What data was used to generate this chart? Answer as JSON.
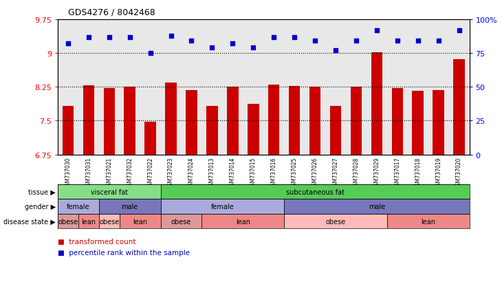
{
  "title": "GDS4276 / 8042468",
  "samples": [
    "GSM737030",
    "GSM737031",
    "GSM737021",
    "GSM737032",
    "GSM737022",
    "GSM737023",
    "GSM737024",
    "GSM737013",
    "GSM737014",
    "GSM737015",
    "GSM737016",
    "GSM737025",
    "GSM737026",
    "GSM737027",
    "GSM737028",
    "GSM737029",
    "GSM737017",
    "GSM737018",
    "GSM737019",
    "GSM737020"
  ],
  "bar_values": [
    7.82,
    8.28,
    8.22,
    8.25,
    7.48,
    8.35,
    8.18,
    7.82,
    8.25,
    7.87,
    8.3,
    8.27,
    8.25,
    7.82,
    8.25,
    9.02,
    8.22,
    8.17,
    8.18,
    8.87
  ],
  "dot_values": [
    82,
    87,
    87,
    87,
    75,
    88,
    84,
    79,
    82,
    79,
    87,
    87,
    84,
    77,
    84,
    92,
    84,
    84,
    84,
    92
  ],
  "ylim": [
    6.75,
    9.75
  ],
  "yticks": [
    6.75,
    7.5,
    8.25,
    9.0,
    9.75
  ],
  "ytick_labels": [
    "6.75",
    "7.5",
    "8.25",
    "9",
    "9.75"
  ],
  "y2lim": [
    0,
    100
  ],
  "y2ticks": [
    0,
    25,
    50,
    75,
    100
  ],
  "y2tick_labels": [
    "0",
    "25",
    "50",
    "75",
    "100%"
  ],
  "grid_lines": [
    7.5,
    8.25,
    9.0
  ],
  "bar_color": "#cc0000",
  "dot_color": "#0000cc",
  "tissue_labels": [
    {
      "text": "visceral fat",
      "start": 0,
      "end": 5,
      "color": "#88dd88"
    },
    {
      "text": "subcutaneous fat",
      "start": 5,
      "end": 20,
      "color": "#55cc55"
    }
  ],
  "gender_labels": [
    {
      "text": "female",
      "start": 0,
      "end": 2,
      "color": "#aaaadd"
    },
    {
      "text": "male",
      "start": 2,
      "end": 5,
      "color": "#7777bb"
    },
    {
      "text": "female",
      "start": 5,
      "end": 11,
      "color": "#aaaadd"
    },
    {
      "text": "male",
      "start": 11,
      "end": 20,
      "color": "#7777bb"
    }
  ],
  "disease_labels": [
    {
      "text": "obese",
      "start": 0,
      "end": 1,
      "color": "#dd9999"
    },
    {
      "text": "lean",
      "start": 1,
      "end": 2,
      "color": "#ee8888"
    },
    {
      "text": "obese",
      "start": 2,
      "end": 3,
      "color": "#ffbbbb"
    },
    {
      "text": "lean",
      "start": 3,
      "end": 5,
      "color": "#ee8888"
    },
    {
      "text": "obese",
      "start": 5,
      "end": 7,
      "color": "#dd9999"
    },
    {
      "text": "lean",
      "start": 7,
      "end": 11,
      "color": "#ee8888"
    },
    {
      "text": "obese",
      "start": 11,
      "end": 16,
      "color": "#ffbbbb"
    },
    {
      "text": "lean",
      "start": 16,
      "end": 20,
      "color": "#ee8888"
    }
  ],
  "legend_items": [
    {
      "label": "transformed count",
      "color": "#cc0000"
    },
    {
      "label": "percentile rank within the sample",
      "color": "#0000cc"
    }
  ],
  "row_labels": [
    "tissue",
    "gender",
    "disease state"
  ],
  "background_color": "#ffffff"
}
